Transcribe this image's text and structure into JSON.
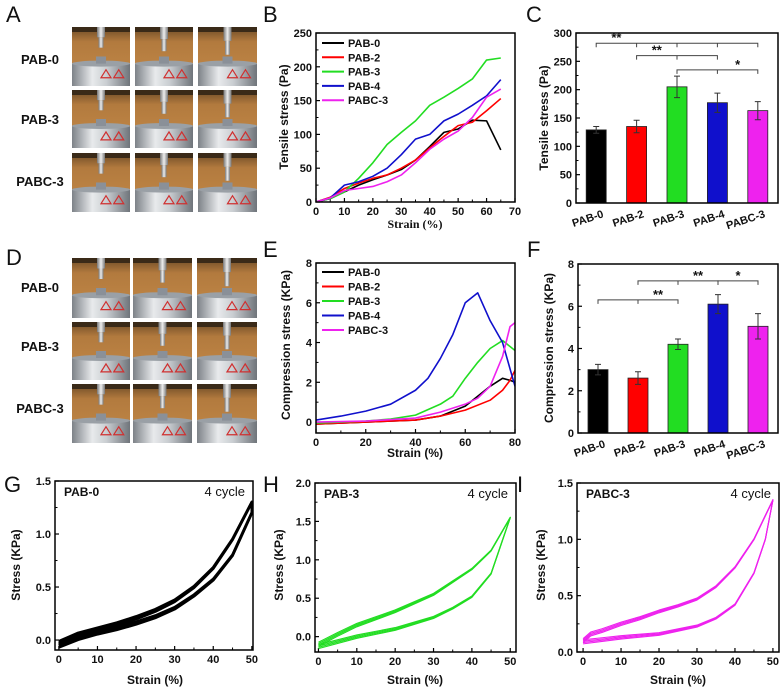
{
  "panels": {
    "A": {
      "letter": "A",
      "row_labels": [
        "PAB-0",
        "PAB-3",
        "PABC-3"
      ],
      "photo_columns": 3
    },
    "D": {
      "letter": "D",
      "row_labels": [
        "PAB-0",
        "PAB-3",
        "PABC-3"
      ],
      "photo_columns": 3
    }
  },
  "colors": {
    "PAB-0": "#000000",
    "PAB-2": "#ff0000",
    "PAB-3": "#22dd22",
    "PAB-4": "#1010cc",
    "PABC-3": "#ee22ee"
  },
  "chart_data": [
    {
      "id": "B",
      "letter": "B",
      "type": "line",
      "xlabel": "Strain (%)",
      "ylabel": "Tensile stress (Pa)",
      "xlim": [
        0,
        70
      ],
      "ylim": [
        0,
        250
      ],
      "xticks": [
        "0",
        "10",
        "20",
        "30",
        "40",
        "50",
        "60",
        "70"
      ],
      "xtick_values": [
        0,
        10,
        20,
        30,
        40,
        50,
        60,
        70
      ],
      "yticks": [
        "0",
        "50",
        "100",
        "150",
        "200",
        "250"
      ],
      "ytick_values": [
        0,
        50,
        100,
        150,
        200,
        250
      ],
      "legend": "top-left",
      "x": [
        0,
        5,
        10,
        15,
        20,
        25,
        30,
        35,
        40,
        45,
        50,
        55,
        60,
        65
      ],
      "series": [
        {
          "name": "PAB-0",
          "values": [
            0,
            5,
            15,
            25,
            33,
            40,
            48,
            62,
            82,
            103,
            108,
            121,
            120,
            77
          ]
        },
        {
          "name": "PAB-2",
          "values": [
            0,
            7,
            20,
            28,
            35,
            40,
            50,
            62,
            80,
            97,
            113,
            118,
            135,
            153
          ]
        },
        {
          "name": "PAB-3",
          "values": [
            0,
            5,
            15,
            35,
            58,
            85,
            103,
            120,
            143,
            155,
            168,
            182,
            210,
            213
          ]
        },
        {
          "name": "PAB-4",
          "values": [
            0,
            6,
            25,
            30,
            38,
            50,
            70,
            93,
            100,
            120,
            130,
            143,
            157,
            181
          ]
        },
        {
          "name": "PABC-3",
          "values": [
            0,
            6,
            17,
            20,
            23,
            30,
            40,
            58,
            78,
            93,
            105,
            125,
            155,
            167
          ]
        }
      ]
    },
    {
      "id": "C",
      "letter": "C",
      "type": "bar",
      "ylabel": "Tensile stress (Pa)",
      "ylim": [
        0,
        300
      ],
      "yticks": [
        "0",
        "50",
        "100",
        "150",
        "200",
        "250",
        "300"
      ],
      "ytick_values": [
        0,
        50,
        100,
        150,
        200,
        250,
        300
      ],
      "categories": [
        "PAB-0",
        "PAB-2",
        "PAB-3",
        "PAB-4",
        "PABC-3"
      ],
      "values": [
        129,
        135,
        205,
        177,
        163
      ],
      "errors": [
        6,
        11,
        19,
        17,
        16
      ],
      "significance": [
        {
          "from": "PAB-0",
          "to": "PABC-3",
          "level": 282,
          "label": "**"
        },
        {
          "from": "PAB-2",
          "to": "PAB-4",
          "level": 260,
          "label": "**"
        },
        {
          "from": "PAB-3",
          "to": "PABC-3",
          "level": 235,
          "label": "*"
        }
      ]
    },
    {
      "id": "E",
      "letter": "E",
      "type": "line",
      "xlabel": "Strain (%)",
      "ylabel": "Compression stress (KPa)",
      "xlim": [
        0,
        80
      ],
      "ylim": [
        -0.55,
        8
      ],
      "xticks": [
        "0",
        "20",
        "40",
        "60",
        "80"
      ],
      "xtick_values": [
        0,
        20,
        40,
        60,
        80
      ],
      "yticks": [
        "0",
        "2",
        "4",
        "6",
        "8"
      ],
      "ytick_values": [
        0,
        2,
        4,
        6,
        8
      ],
      "legend": "top-left",
      "series": [
        {
          "name": "PAB-0",
          "points": [
            [
              0,
              -0.1
            ],
            [
              20,
              0
            ],
            [
              40,
              0.1
            ],
            [
              50,
              0.3
            ],
            [
              60,
              0.8
            ],
            [
              65,
              1.3
            ],
            [
              70,
              1.8
            ],
            [
              75,
              2.2
            ],
            [
              78,
              2.1
            ],
            [
              80,
              2.0
            ]
          ]
        },
        {
          "name": "PAB-2",
          "points": [
            [
              0,
              -0.1
            ],
            [
              20,
              0
            ],
            [
              40,
              0.1
            ],
            [
              50,
              0.3
            ],
            [
              60,
              0.6
            ],
            [
              70,
              1.1
            ],
            [
              75,
              1.6
            ],
            [
              78,
              2.1
            ],
            [
              80,
              2.6
            ]
          ]
        },
        {
          "name": "PAB-3",
          "points": [
            [
              0,
              -0.05
            ],
            [
              20,
              0.05
            ],
            [
              30,
              0.15
            ],
            [
              40,
              0.35
            ],
            [
              50,
              0.9
            ],
            [
              55,
              1.3
            ],
            [
              60,
              2.2
            ],
            [
              65,
              3.0
            ],
            [
              70,
              3.7
            ],
            [
              75,
              4.1
            ],
            [
              80,
              3.6
            ]
          ]
        },
        {
          "name": "PAB-4",
          "points": [
            [
              0,
              0.1
            ],
            [
              10,
              0.3
            ],
            [
              20,
              0.55
            ],
            [
              30,
              0.9
            ],
            [
              40,
              1.6
            ],
            [
              45,
              2.2
            ],
            [
              50,
              3.2
            ],
            [
              55,
              4.4
            ],
            [
              60,
              6.0
            ],
            [
              65,
              6.5
            ],
            [
              70,
              5.1
            ],
            [
              75,
              4.0
            ],
            [
              80,
              1.8
            ]
          ]
        },
        {
          "name": "PABC-3",
          "points": [
            [
              0,
              0
            ],
            [
              20,
              0.05
            ],
            [
              40,
              0.2
            ],
            [
              50,
              0.5
            ],
            [
              60,
              0.9
            ],
            [
              65,
              1.2
            ],
            [
              70,
              1.8
            ],
            [
              75,
              3.3
            ],
            [
              78,
              4.8
            ],
            [
              80,
              5.0
            ]
          ]
        }
      ]
    },
    {
      "id": "F",
      "letter": "F",
      "type": "bar",
      "ylabel": "Compression stress (KPa)",
      "ylim": [
        0,
        8
      ],
      "yticks": [
        "0",
        "2",
        "4",
        "6",
        "8"
      ],
      "ytick_values": [
        0,
        2,
        4,
        6,
        8
      ],
      "categories": [
        "PAB-0",
        "PAB-2",
        "PAB-3",
        "PAB-4",
        "PABC-3"
      ],
      "values": [
        3.0,
        2.6,
        4.2,
        6.1,
        5.05
      ],
      "errors": [
        0.25,
        0.3,
        0.25,
        0.45,
        0.6
      ],
      "significance": [
        {
          "from": "PAB-0",
          "to": "PAB-3",
          "level": 6.3,
          "label": "**"
        },
        {
          "from": "PAB-2",
          "to": "PAB-4",
          "level": 7.2,
          "label": "**"
        },
        {
          "from": "PAB-4",
          "to": "PABC-3",
          "level": 7.2,
          "label": "*"
        }
      ]
    },
    {
      "id": "G",
      "letter": "G",
      "type": "line",
      "sample": "PAB-0",
      "cycle_label": "4 cycle",
      "cycles": 4,
      "color": "#000000",
      "xlabel": "Strain (%)",
      "ylabel": "Stress (KPa)",
      "xlim": [
        -1,
        50.3
      ],
      "ylim": [
        -0.094,
        1.5
      ],
      "xticks": [
        "0",
        "10",
        "20",
        "30",
        "40",
        "50"
      ],
      "xtick_values": [
        0,
        10,
        20,
        30,
        40,
        50
      ],
      "yticks": [
        "0.0",
        "0.5",
        "1.0",
        "1.5"
      ],
      "ytick_values": [
        0,
        0.5,
        1.0,
        1.5
      ],
      "loading": [
        [
          0,
          -0.03
        ],
        [
          5,
          0.05
        ],
        [
          10,
          0.1
        ],
        [
          15,
          0.15
        ],
        [
          20,
          0.21
        ],
        [
          25,
          0.28
        ],
        [
          30,
          0.37
        ],
        [
          35,
          0.5
        ],
        [
          40,
          0.68
        ],
        [
          45,
          0.95
        ],
        [
          50,
          1.3
        ]
      ],
      "unloading": [
        [
          50,
          1.2
        ],
        [
          45,
          0.8
        ],
        [
          40,
          0.57
        ],
        [
          35,
          0.42
        ],
        [
          30,
          0.3
        ],
        [
          25,
          0.22
        ],
        [
          20,
          0.16
        ],
        [
          15,
          0.11
        ],
        [
          10,
          0.07
        ],
        [
          5,
          0.02
        ],
        [
          0,
          -0.05
        ]
      ]
    },
    {
      "id": "H",
      "letter": "H",
      "type": "line",
      "sample": "PAB-3",
      "cycle_label": "4 cycle",
      "cycles": 4,
      "color": "#22dd22",
      "xlabel": "Strain (%)",
      "ylabel": "Stress (KPa)",
      "xlim": [
        -0.9,
        51.5
      ],
      "ylim": [
        -0.2,
        2.0
      ],
      "xticks": [
        "0",
        "10",
        "20",
        "30",
        "40",
        "50"
      ],
      "xtick_values": [
        0,
        10,
        20,
        30,
        40,
        50
      ],
      "yticks": [
        "0.0",
        "0.5",
        "1.0",
        "1.5",
        "2.0"
      ],
      "ytick_values": [
        0,
        0.5,
        1.0,
        1.5,
        2.0
      ],
      "loading": [
        [
          0,
          -0.1
        ],
        [
          5,
          0.03
        ],
        [
          10,
          0.15
        ],
        [
          20,
          0.33
        ],
        [
          30,
          0.55
        ],
        [
          40,
          0.88
        ],
        [
          45,
          1.12
        ],
        [
          50,
          1.55
        ]
      ],
      "unloading": [
        [
          50,
          1.55
        ],
        [
          45,
          0.82
        ],
        [
          40,
          0.52
        ],
        [
          35,
          0.37
        ],
        [
          30,
          0.25
        ],
        [
          20,
          0.1
        ],
        [
          10,
          0.0
        ],
        [
          0,
          -0.13
        ]
      ]
    },
    {
      "id": "I",
      "letter": "I",
      "type": "line",
      "sample": "PABC-3",
      "cycle_label": "4 cycle",
      "cycles": 4,
      "color": "#ee22ee",
      "xlabel": "Strain (%)",
      "ylabel": "Stress (KPa)",
      "xlim": [
        -1.6,
        51.6
      ],
      "ylim": [
        0,
        1.5
      ],
      "xticks": [
        "0",
        "10",
        "20",
        "30",
        "40",
        "50"
      ],
      "xtick_values": [
        0,
        10,
        20,
        30,
        40,
        50
      ],
      "yticks": [
        "0.0",
        "0.5",
        "1.0",
        "1.5"
      ],
      "ytick_values": [
        0,
        0.5,
        1.0,
        1.5
      ],
      "loading": [
        [
          0,
          0.1
        ],
        [
          2,
          0.16
        ],
        [
          5,
          0.19
        ],
        [
          10,
          0.25
        ],
        [
          15,
          0.3
        ],
        [
          20,
          0.36
        ],
        [
          25,
          0.41
        ],
        [
          30,
          0.47
        ],
        [
          35,
          0.58
        ],
        [
          40,
          0.75
        ],
        [
          45,
          1.0
        ],
        [
          50,
          1.35
        ]
      ],
      "unloading": [
        [
          50,
          1.35
        ],
        [
          48,
          1.0
        ],
        [
          45,
          0.7
        ],
        [
          40,
          0.42
        ],
        [
          35,
          0.3
        ],
        [
          30,
          0.23
        ],
        [
          20,
          0.16
        ],
        [
          10,
          0.13
        ],
        [
          5,
          0.11
        ],
        [
          0,
          0.09
        ]
      ]
    }
  ]
}
